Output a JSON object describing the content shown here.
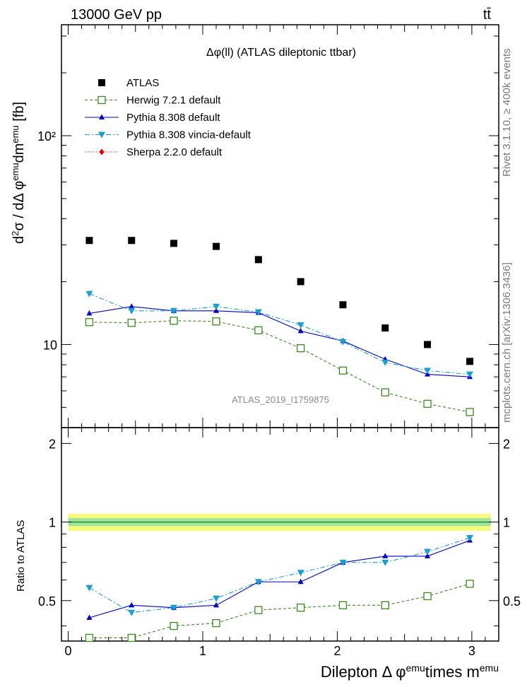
{
  "header": {
    "energy_label": "13000 GeV pp",
    "process_label": "tt̄"
  },
  "side_labels": {
    "rivet": "Rivet 3.1.10, ≥ 400k events",
    "mcplots": "mcplots.cern.ch [arXiv:1306.3436]"
  },
  "chart_data": [
    {
      "type": "scatter",
      "panel": "main",
      "title": "Δφ(ll) (ATLAS dileptonic ttbar)",
      "watermark": "ATLAS_2019_I1759875",
      "ylabel": "d²σ / dΔφ^emu dm^emu [fb]",
      "yscale": "log",
      "ylim": [
        4,
        340
      ],
      "xlim": [
        -0.05,
        3.2
      ],
      "ytick_labels": [
        "10",
        "10²"
      ],
      "x": [
        0.157,
        0.471,
        0.785,
        1.1,
        1.414,
        1.728,
        2.042,
        2.356,
        2.67,
        2.985
      ],
      "series": [
        {
          "name": "ATLAS",
          "color": "#000000",
          "marker": "square",
          "line": "none",
          "values": [
            31.5,
            31.5,
            30.5,
            29.5,
            25.5,
            20.0,
            15.5,
            12.0,
            10.0,
            8.3
          ]
        },
        {
          "name": "Herwig 7.2.1 default",
          "color": "#3a8a1e",
          "marker": "open-square",
          "line": "dashed",
          "values": [
            12.8,
            12.7,
            13.0,
            12.9,
            11.7,
            9.6,
            7.5,
            5.9,
            5.2,
            4.75
          ]
        },
        {
          "name": "Pythia 8.308 default",
          "color": "#0000c8",
          "marker": "triangle-up",
          "line": "solid",
          "values": [
            14.1,
            15.2,
            14.5,
            14.5,
            14.2,
            11.6,
            10.4,
            8.5,
            7.2,
            7.0
          ]
        },
        {
          "name": "Pythia 8.308 vincia-default",
          "color": "#1a9fd0",
          "marker": "triangle-down",
          "line": "dashdot",
          "values": [
            17.5,
            14.5,
            14.5,
            15.2,
            14.3,
            12.4,
            10.3,
            8.2,
            7.5,
            7.2
          ]
        },
        {
          "name": "Sherpa 2.2.0 default",
          "color": "#e00000",
          "marker": "diamond",
          "line": "dotted",
          "values": []
        }
      ]
    },
    {
      "type": "line",
      "panel": "ratio",
      "ylabel": "Ratio to ATLAS",
      "xlabel": "Dilepton Δ φ^emu times m^emu",
      "xlim": [
        -0.05,
        3.2
      ],
      "ylim": [
        0.35,
        2.3
      ],
      "yscale": "log",
      "xtick_labels": [
        "0",
        "1",
        "2",
        "3"
      ],
      "ytick_labels": [
        "0.5",
        "1",
        "2"
      ],
      "x": [
        0.157,
        0.471,
        0.785,
        1.1,
        1.414,
        1.728,
        2.042,
        2.356,
        2.67,
        2.985
      ],
      "band_inner": 0.035,
      "band_outer": 0.075,
      "series": [
        {
          "name": "Herwig 7.2.1 default",
          "color": "#3a8a1e",
          "marker": "open-square",
          "line": "dashed",
          "values": [
            0.36,
            0.36,
            0.4,
            0.41,
            0.46,
            0.47,
            0.48,
            0.48,
            0.52,
            0.58
          ]
        },
        {
          "name": "Pythia 8.308 default",
          "color": "#0000c8",
          "marker": "triangle-up",
          "line": "solid",
          "values": [
            0.43,
            0.48,
            0.47,
            0.48,
            0.59,
            0.59,
            0.7,
            0.74,
            0.74,
            0.85
          ]
        },
        {
          "name": "Pythia 8.308 vincia-default",
          "color": "#1a9fd0",
          "marker": "triangle-down",
          "line": "dashdot",
          "values": [
            0.56,
            0.45,
            0.47,
            0.51,
            0.59,
            0.64,
            0.7,
            0.7,
            0.77,
            0.87
          ]
        }
      ]
    }
  ]
}
